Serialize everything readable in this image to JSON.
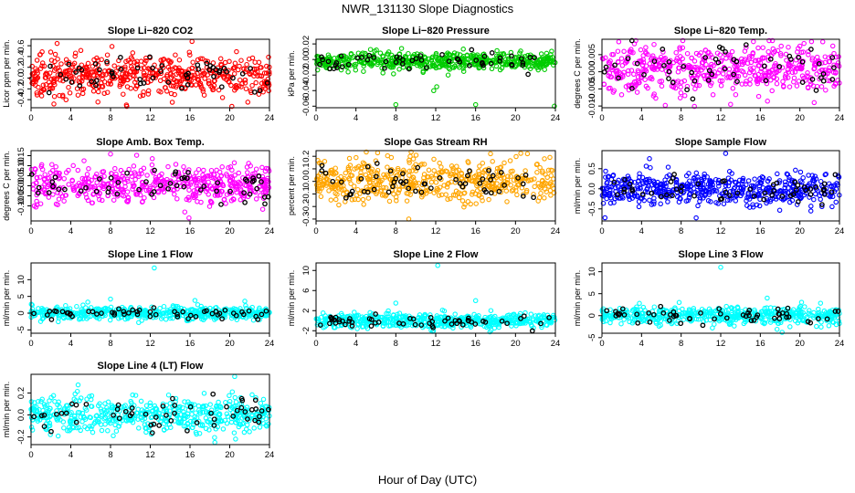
{
  "figure": {
    "title": "NWR_131130  Slope Diagnostics",
    "xlabel": "Hour of Day (UTC)"
  },
  "chart_data": [
    {
      "type": "scatter",
      "title": "Slope Li−820 CO2",
      "ylabel": "Licor ppm per min.",
      "xlim": [
        0,
        24
      ],
      "ylim": [
        -0.55,
        0.72
      ],
      "yticks": [
        -0.4,
        -0.2,
        0.0,
        0.2,
        0.4,
        0.6
      ],
      "ytick_labels": [
        "-0.4",
        "-0.2",
        "0.0",
        "0.2",
        "0.4",
        "0.6"
      ],
      "xticks": [
        0,
        4,
        8,
        12,
        16,
        20,
        24
      ],
      "center": 0.05,
      "spread": 0.18,
      "color": "#ff0000",
      "outliers": [
        {
          "x": 16.2,
          "y": 0.68
        },
        {
          "x": 2.3,
          "y": -0.48
        },
        {
          "x": 9.6,
          "y": -0.5
        }
      ],
      "grid": false
    },
    {
      "type": "scatter",
      "title": "Slope Li−820 Pressure",
      "ylabel": "kPa per min.",
      "xlim": [
        0,
        24
      ],
      "ylim": [
        -0.062,
        0.026
      ],
      "yticks": [
        -0.06,
        -0.04,
        -0.02,
        0.0,
        0.02
      ],
      "ytick_labels": [
        "-0.06",
        "-0.04",
        "-0.02",
        "0.00",
        "0.02"
      ],
      "xticks": [
        0,
        4,
        8,
        12,
        16,
        20,
        24
      ],
      "center": -0.002,
      "spread": 0.006,
      "color": "#00cc00",
      "outliers": [
        {
          "x": 8.0,
          "y": -0.058
        },
        {
          "x": 16.0,
          "y": -0.058
        },
        {
          "x": 23.9,
          "y": -0.06
        },
        {
          "x": 12.1,
          "y": -0.035
        },
        {
          "x": 11.8,
          "y": -0.04
        }
      ],
      "grid": false
    },
    {
      "type": "scatter",
      "title": "Slope Li−820 Temp.",
      "ylabel": "degrees C per min.",
      "xlim": [
        0,
        24
      ],
      "ylim": [
        -0.0105,
        0.0095
      ],
      "yticks": [
        -0.01,
        -0.005,
        0.0,
        0.005
      ],
      "ytick_labels": [
        "-0.010",
        "-0.005",
        "0.000",
        "0.005"
      ],
      "xticks": [
        0,
        4,
        8,
        12,
        16,
        20,
        24
      ],
      "center": 0.001,
      "spread": 0.0035,
      "color": "#ff00ff",
      "outliers": [
        {
          "x": 15.3,
          "y": 0.0088
        },
        {
          "x": 20.0,
          "y": 0.0075
        },
        {
          "x": 6.4,
          "y": -0.0098
        },
        {
          "x": 13.0,
          "y": -0.0095
        }
      ],
      "grid": false
    },
    {
      "type": "scatter",
      "title": "Slope Amb. Box Temp.",
      "ylabel": "degrees C per min.",
      "xlim": [
        0,
        24
      ],
      "ylim": [
        -0.175,
        0.175
      ],
      "yticks": [
        -0.1,
        -0.05,
        0.0,
        0.05,
        0.1,
        0.15
      ],
      "ytick_labels": [
        "-0.10",
        "-0.05",
        "0.00",
        "0.05",
        "0.10",
        "0.15"
      ],
      "xticks": [
        0,
        4,
        8,
        12,
        16,
        20,
        24
      ],
      "center": 0.005,
      "spread": 0.045,
      "color": "#ff00ff",
      "outliers": [
        {
          "x": 8.0,
          "y": 0.158
        },
        {
          "x": 12.2,
          "y": 0.135
        },
        {
          "x": 15.9,
          "y": -0.16
        }
      ],
      "grid": false
    },
    {
      "type": "scatter",
      "title": "Slope Gas Stream RH",
      "ylabel": "percent per min.",
      "xlim": [
        0,
        24
      ],
      "ylim": [
        -0.315,
        0.245
      ],
      "yticks": [
        -0.3,
        -0.2,
        -0.1,
        0.0,
        0.1,
        0.2
      ],
      "ytick_labels": [
        "-0.3",
        "-0.2",
        "-0.1",
        "0.0",
        "0.1",
        "0.2"
      ],
      "xticks": [
        0,
        4,
        8,
        12,
        16,
        20,
        24
      ],
      "center": 0.0,
      "spread": 0.085,
      "color": "#ffa500",
      "outliers": [
        {
          "x": 9.3,
          "y": -0.3
        },
        {
          "x": 21.2,
          "y": 0.22
        },
        {
          "x": 17.5,
          "y": 0.22
        }
      ],
      "grid": false
    },
    {
      "type": "scatter",
      "title": "Slope Sample Flow",
      "ylabel": "ml/min per min.",
      "xlim": [
        0,
        24
      ],
      "ylim": [
        -0.8,
        0.95
      ],
      "yticks": [
        -0.5,
        0.0,
        0.5
      ],
      "ytick_labels": [
        "-0.5",
        "0.0",
        "0.5"
      ],
      "xticks": [
        0,
        4,
        8,
        12,
        16,
        20,
        24
      ],
      "center": 0.0,
      "spread": 0.2,
      "color": "#0000ff",
      "outliers": [
        {
          "x": 12.5,
          "y": 0.88
        },
        {
          "x": 4.8,
          "y": 0.75
        },
        {
          "x": 0.3,
          "y": -0.72
        }
      ],
      "grid": false
    },
    {
      "type": "scatter",
      "title": "Slope Line 1 Flow",
      "ylabel": "ml/min per min.",
      "xlim": [
        0,
        24
      ],
      "ylim": [
        -6,
        15
      ],
      "yticks": [
        -5,
        0,
        5,
        10
      ],
      "ytick_labels": [
        "-5",
        "0",
        "5",
        "10"
      ],
      "xticks": [
        0,
        4,
        8,
        12,
        16,
        20,
        24
      ],
      "center": 0.0,
      "spread": 0.9,
      "color": "#00ffff",
      "outliers": [
        {
          "x": 12.4,
          "y": 13.5
        },
        {
          "x": 8.0,
          "y": 4.2
        },
        {
          "x": 16.5,
          "y": 3.8
        }
      ],
      "grid": false
    },
    {
      "type": "scatter",
      "title": "Slope Line 2 Flow",
      "ylabel": "ml/min per min.",
      "xlim": [
        0,
        24
      ],
      "ylim": [
        -2.5,
        11.5
      ],
      "yticks": [
        -2,
        2,
        6,
        10
      ],
      "ytick_labels": [
        "-2",
        "2",
        "6",
        "10"
      ],
      "xticks": [
        0,
        4,
        8,
        12,
        16,
        20,
        24
      ],
      "center": 0.0,
      "spread": 0.7,
      "color": "#00ffff",
      "outliers": [
        {
          "x": 12.2,
          "y": 11.0
        },
        {
          "x": 8.0,
          "y": 3.5
        },
        {
          "x": 16.0,
          "y": 4.0
        }
      ],
      "grid": false
    },
    {
      "type": "scatter",
      "title": "Slope Line 3 Flow",
      "ylabel": "ml/min per min.",
      "xlim": [
        0,
        24
      ],
      "ylim": [
        -4,
        12
      ],
      "yticks": [
        -5,
        0,
        5,
        10
      ],
      "ytick_labels": [
        "-5",
        "0",
        "5",
        "10"
      ],
      "xticks": [
        0,
        4,
        8,
        12,
        16,
        20,
        24
      ],
      "center": 0.0,
      "spread": 1.0,
      "color": "#00ffff",
      "outliers": [
        {
          "x": 12.0,
          "y": 11.0
        },
        {
          "x": 16.7,
          "y": 4.0
        },
        {
          "x": 7.8,
          "y": 3.0
        },
        {
          "x": 18.2,
          "y": -3.8
        }
      ],
      "grid": false
    },
    {
      "type": "scatter",
      "title": "Slope Line 4 (LT) Flow",
      "ylabel": "ml/min per min.",
      "xlim": [
        0,
        24
      ],
      "ylim": [
        -0.27,
        0.37
      ],
      "yticks": [
        -0.2,
        0.0,
        0.2
      ],
      "ytick_labels": [
        "-0.2",
        "0.0",
        "0.2"
      ],
      "xticks": [
        0,
        4,
        8,
        12,
        16,
        20,
        24
      ],
      "center": 0.0,
      "spread": 0.08,
      "color": "#00ffff",
      "outliers": [
        {
          "x": 20.5,
          "y": 0.35
        },
        {
          "x": 18.5,
          "y": -0.25
        }
      ],
      "grid": false
    }
  ]
}
